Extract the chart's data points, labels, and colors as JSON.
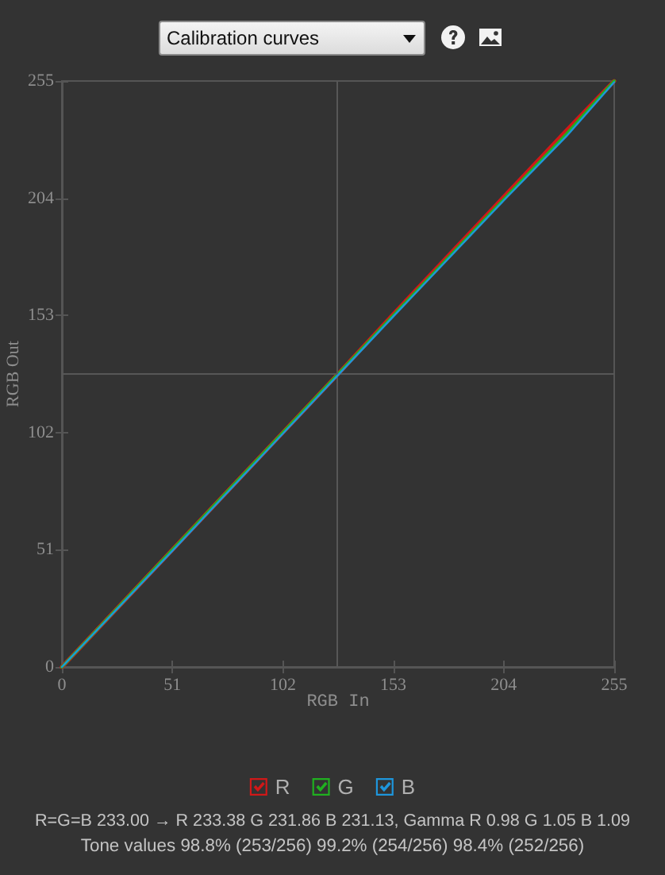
{
  "chart_data": {
    "type": "line",
    "title": "Calibration curves",
    "xlabel": "RGB In",
    "ylabel": "RGB Out",
    "x": [
      0,
      51,
      102,
      127.5,
      153,
      204,
      233,
      255
    ],
    "series": [
      {
        "name": "R",
        "color": "#d01818",
        "values": [
          0,
          51,
          102,
          127.5,
          153.5,
          204.5,
          233.5,
          255
        ]
      },
      {
        "name": "G",
        "color": "#20b020",
        "values": [
          0,
          51,
          102,
          127.5,
          153,
          203.5,
          232,
          255
        ]
      },
      {
        "name": "B",
        "color": "#1e96dc",
        "values": [
          0,
          50.5,
          101.5,
          127,
          152.5,
          203,
          231,
          254.5
        ]
      }
    ],
    "xlim": [
      0,
      255
    ],
    "ylim": [
      0,
      255
    ],
    "xticks": [
      0,
      51,
      102,
      153,
      204,
      255
    ],
    "yticks": [
      0,
      51,
      102,
      153,
      204,
      255
    ],
    "ref_lines": [
      {
        "axis": "x",
        "value": 127,
        "color": "#575757"
      },
      {
        "axis": "y",
        "value": 128,
        "color": "#575757"
      }
    ],
    "legend": "bottom",
    "marker": "none",
    "line_style": "solid",
    "annotations": [
      "R=G=B 233.00 → R 233.38 G 231.86 B 231.13, Gamma R 0.98 G 1.05 B 1.09",
      "Tone values 98.8% (253/256) 99.2% (254/256) 98.4% (252/256)"
    ]
  }
}
